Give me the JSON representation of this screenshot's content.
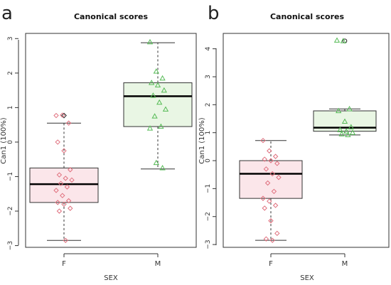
{
  "chart_data": [
    {
      "panel": "a",
      "type": "box",
      "title": "Canonical scores",
      "xlabel": "SEX",
      "ylabel": "Can1 (100%)",
      "categories": [
        "F",
        "M"
      ],
      "ylim": [
        -3.05,
        3.15
      ],
      "yticks": [
        -3,
        -2,
        -1,
        0,
        1,
        2,
        3
      ],
      "boxes": [
        {
          "group": "F",
          "fill": "#fbe6ea",
          "point_color": "#e0707e",
          "point_shape": "diamond",
          "whisker_low": -2.85,
          "q1": -1.75,
          "median": -1.22,
          "q3": -0.75,
          "whisker_high": 0.55,
          "outliers": [
            0.77
          ],
          "points": [
            0.77,
            0.78,
            0.55,
            0.0,
            -0.25,
            -0.8,
            -0.95,
            -1.05,
            -1.1,
            -1.2,
            -1.3,
            -1.4,
            -1.55,
            -1.7,
            -1.75,
            -1.8,
            -1.92,
            -2.0,
            -2.85
          ]
        },
        {
          "group": "M",
          "fill": "#e9f6e4",
          "point_color": "#55bb55",
          "point_shape": "triangle",
          "whisker_low": -0.78,
          "q1": 0.45,
          "median": 1.33,
          "q3": 1.72,
          "whisker_high": 2.88,
          "outliers": [],
          "points": [
            2.9,
            2.05,
            1.85,
            1.72,
            1.65,
            1.5,
            1.35,
            1.15,
            0.95,
            0.75,
            0.45,
            0.4,
            -0.6,
            -0.75
          ]
        }
      ]
    },
    {
      "panel": "b",
      "type": "box",
      "title": "Canonical scores",
      "xlabel": "SEX",
      "ylabel": "Can1 (100%)",
      "categories": [
        "F",
        "M"
      ],
      "ylim": [
        -3.1,
        4.55
      ],
      "yticks": [
        -3,
        -2,
        -1,
        0,
        1,
        2,
        3,
        4
      ],
      "boxes": [
        {
          "group": "F",
          "fill": "#fbe6ea",
          "point_color": "#e0707e",
          "point_shape": "diamond",
          "whisker_low": -2.85,
          "q1": -1.35,
          "median": -0.47,
          "q3": 0.0,
          "whisker_high": 0.72,
          "outliers": [],
          "points": [
            0.72,
            0.35,
            0.15,
            0.05,
            0.0,
            -0.1,
            -0.3,
            -0.47,
            -0.6,
            -0.8,
            -1.1,
            -1.35,
            -1.45,
            -1.6,
            -1.7,
            -2.15,
            -2.6,
            -2.8,
            -2.85
          ]
        },
        {
          "group": "M",
          "fill": "#e9f6e4",
          "point_color": "#55bb55",
          "point_shape": "triangle",
          "whisker_low": 0.92,
          "q1": 1.05,
          "median": 1.18,
          "q3": 1.78,
          "whisker_high": 1.85,
          "outliers": [
            4.28
          ],
          "points": [
            4.3,
            4.28,
            1.85,
            1.78,
            1.4,
            1.2,
            1.1,
            1.05,
            1.0,
            0.95,
            0.92
          ]
        }
      ]
    }
  ]
}
